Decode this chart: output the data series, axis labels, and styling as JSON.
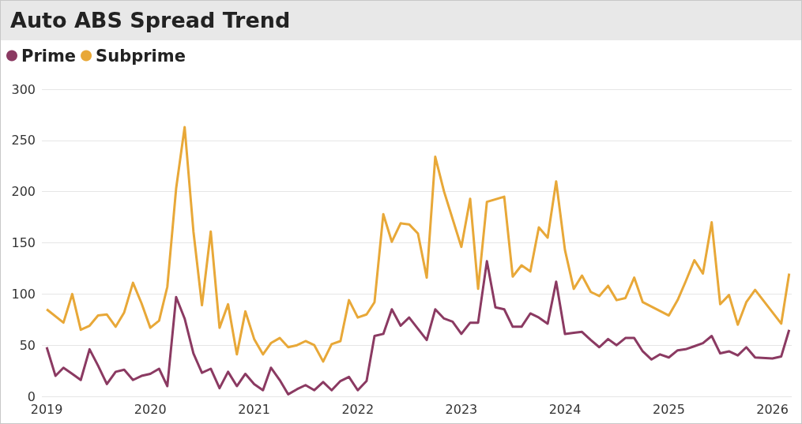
{
  "chart_data": {
    "type": "line",
    "title": "Auto ABS Spread Trend",
    "legend": "top left",
    "grid": "y",
    "marker": "none",
    "line_style": "solid",
    "xlim": [
      "2018-12-15",
      "2026-03-10"
    ],
    "xticks": [
      {
        "value": "2019-01",
        "label": "2019"
      },
      {
        "value": "2020-01",
        "label": "2020"
      },
      {
        "value": "2021-01",
        "label": "2021"
      },
      {
        "value": "2022-01",
        "label": "2022"
      },
      {
        "value": "2023-01",
        "label": "2023"
      },
      {
        "value": "2024-01",
        "label": "2024"
      },
      {
        "value": "2025-01",
        "label": "2025"
      },
      {
        "value": "2026-01",
        "label": "2026"
      }
    ],
    "ylim": [
      0,
      300
    ],
    "yticks": [
      0,
      50,
      100,
      150,
      200,
      250,
      300
    ],
    "series": [
      {
        "name": "Prime",
        "color": "#8b3a62",
        "x": [
          "2019-01",
          "2019-02",
          "2019-03",
          "2019-04",
          "2019-05",
          "2019-06",
          "2019-07",
          "2019-08",
          "2019-09",
          "2019-10",
          "2019-11",
          "2019-12",
          "2020-01",
          "2020-02",
          "2020-03",
          "2020-04",
          "2020-05",
          "2020-06",
          "2020-07",
          "2020-08",
          "2020-09",
          "2020-10",
          "2020-11",
          "2020-12",
          "2021-01",
          "2021-02",
          "2021-03",
          "2021-04",
          "2021-05",
          "2021-06",
          "2021-07",
          "2021-08",
          "2021-09",
          "2021-10",
          "2021-11",
          "2021-12",
          "2022-01",
          "2022-02",
          "2022-03",
          "2022-04",
          "2022-05",
          "2022-06",
          "2022-07",
          "2022-08",
          "2022-09",
          "2022-10",
          "2022-11",
          "2022-12",
          "2023-01",
          "2023-02",
          "2023-03",
          "2023-04",
          "2023-05",
          "2023-06",
          "2023-07",
          "2023-08",
          "2023-09",
          "2023-10",
          "2023-11",
          "2023-12",
          "2024-01",
          "2024-02",
          "2024-03",
          "2024-04",
          "2024-05",
          "2024-06",
          "2024-07",
          "2024-08",
          "2024-09",
          "2024-10",
          "2024-11",
          "2024-12",
          "2025-01",
          "2025-02",
          "2025-03",
          "2025-04",
          "2025-05",
          "2025-06",
          "2025-07",
          "2025-08",
          "2025-09",
          "2025-10",
          "2025-11",
          "2026-01",
          "2026-02",
          "2026-03"
        ],
        "values": [
          48,
          20,
          28,
          22,
          16,
          46,
          30,
          12,
          24,
          26,
          16,
          20,
          22,
          27,
          10,
          97,
          76,
          42,
          23,
          27,
          8,
          24,
          10,
          22,
          12,
          6,
          28,
          16,
          2,
          7,
          11,
          6,
          14,
          6,
          15,
          19,
          6,
          15,
          59,
          61,
          85,
          69,
          77,
          66,
          55,
          85,
          76,
          73,
          61,
          72,
          72,
          132,
          87,
          85,
          68,
          68,
          81,
          77,
          71,
          112,
          61,
          62,
          63,
          55,
          48,
          56,
          50,
          57,
          57,
          44,
          36,
          41,
          38,
          45,
          46,
          49,
          52,
          59,
          42,
          44,
          40,
          48,
          38,
          37,
          39,
          65
        ]
      },
      {
        "name": "Subprime",
        "color": "#e8a838",
        "x": [
          "2019-01",
          "2019-03",
          "2019-04",
          "2019-05",
          "2019-06",
          "2019-07",
          "2019-08",
          "2019-09",
          "2019-10",
          "2019-11",
          "2019-12",
          "2020-01",
          "2020-02",
          "2020-03",
          "2020-04",
          "2020-05",
          "2020-06",
          "2020-07",
          "2020-08",
          "2020-09",
          "2020-10",
          "2020-11",
          "2020-12",
          "2021-01",
          "2021-02",
          "2021-03",
          "2021-04",
          "2021-05",
          "2021-06",
          "2021-07",
          "2021-08",
          "2021-09",
          "2021-10",
          "2021-11",
          "2021-12",
          "2022-01",
          "2022-02",
          "2022-03",
          "2022-04",
          "2022-05",
          "2022-06",
          "2022-07",
          "2022-08",
          "2022-09",
          "2022-10",
          "2022-11",
          "2023-01",
          "2023-02",
          "2023-03",
          "2023-04",
          "2023-06",
          "2023-07",
          "2023-08",
          "2023-09",
          "2023-10",
          "2023-11",
          "2023-12",
          "2024-01",
          "2024-02",
          "2024-03",
          "2024-04",
          "2024-05",
          "2024-06",
          "2024-07",
          "2024-08",
          "2024-09",
          "2024-10",
          "2025-01",
          "2025-02",
          "2025-03",
          "2025-04",
          "2025-05",
          "2025-06",
          "2025-07",
          "2025-08",
          "2025-09",
          "2025-10",
          "2025-11",
          "2026-02",
          "2026-03"
        ],
        "values": [
          85,
          72,
          100,
          65,
          69,
          79,
          80,
          68,
          82,
          111,
          91,
          67,
          74,
          107,
          203,
          263,
          161,
          89,
          161,
          67,
          90,
          41,
          83,
          56,
          41,
          52,
          57,
          48,
          50,
          54,
          50,
          34,
          51,
          54,
          94,
          77,
          80,
          92,
          178,
          151,
          169,
          168,
          159,
          116,
          234,
          200,
          146,
          193,
          105,
          190,
          195,
          117,
          128,
          122,
          165,
          155,
          210,
          143,
          105,
          118,
          102,
          98,
          108,
          94,
          96,
          116,
          92,
          79,
          94,
          112,
          133,
          120,
          170,
          90,
          99,
          70,
          92,
          104,
          71,
          120
        ]
      }
    ]
  }
}
